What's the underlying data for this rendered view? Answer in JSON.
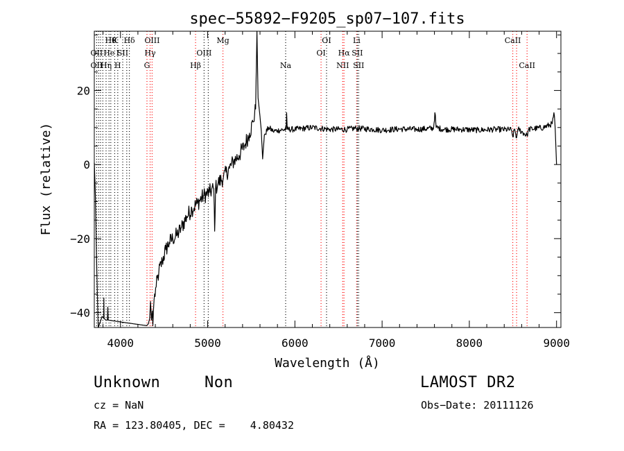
{
  "chart_data": {
    "type": "line",
    "title": "spec−55892−F9205_sp07−107.fits",
    "xlabel": "Wavelength (Å)",
    "ylabel": "Flux (relative)",
    "xlim": [
      3700,
      9050
    ],
    "ylim": [
      -44,
      36
    ],
    "xticks": [
      {
        "value": 4000,
        "label": "4000"
      },
      {
        "value": 5000,
        "label": "5000"
      },
      {
        "value": 6000,
        "label": "6000"
      },
      {
        "value": 7000,
        "label": "7000"
      },
      {
        "value": 8000,
        "label": "8000"
      },
      {
        "value": 9000,
        "label": "9000"
      }
    ],
    "yticks": [
      {
        "value": 20,
        "label": "20"
      },
      {
        "value": 0,
        "label": "0"
      },
      {
        "value": -20,
        "label": "−20"
      },
      {
        "value": -40,
        "label": "−40"
      }
    ],
    "lines": [
      {
        "wavelength": 3727,
        "color": "#000000",
        "labels": [
          {
            "row": 1,
            "text": "OII"
          },
          {
            "row": 2,
            "text": "OII"
          }
        ]
      },
      {
        "wavelength": 3750,
        "color": "#000000",
        "labels": []
      },
      {
        "wavelength": 3771,
        "color": "#000000",
        "labels": []
      },
      {
        "wavelength": 3798,
        "color": "#000000",
        "labels": []
      },
      {
        "wavelength": 3835,
        "color": "#000000",
        "labels": [
          {
            "row": 2,
            "text": "Hη"
          }
        ]
      },
      {
        "wavelength": 3869,
        "color": "#000000",
        "labels": [
          {
            "row": 1,
            "text": "He"
          }
        ]
      },
      {
        "wavelength": 3889,
        "color": "#000000",
        "labels": [
          {
            "row": 0,
            "text": "Hθ"
          }
        ]
      },
      {
        "wavelength": 3934,
        "color": "#000000",
        "labels": [
          {
            "row": 0,
            "text": "K"
          }
        ]
      },
      {
        "wavelength": 3969,
        "color": "#000000",
        "labels": [
          {
            "row": 1,
            "text": "I"
          },
          {
            "row": 2,
            "text": "H"
          }
        ]
      },
      {
        "wavelength": 4026,
        "color": "#000000",
        "labels": [
          {
            "row": 1,
            "text": "SII"
          }
        ]
      },
      {
        "wavelength": 4072,
        "color": "#000000",
        "labels": []
      },
      {
        "wavelength": 4102,
        "color": "#000000",
        "labels": [
          {
            "row": 0,
            "text": "Hδ"
          }
        ]
      },
      {
        "wavelength": 4304,
        "color": "#ff0000",
        "labels": [
          {
            "row": 2,
            "text": "G"
          }
        ]
      },
      {
        "wavelength": 4340,
        "color": "#ff0000",
        "labels": [
          {
            "row": 1,
            "text": "Hγ"
          }
        ]
      },
      {
        "wavelength": 4363,
        "color": "#ff0000",
        "labels": [
          {
            "row": 0,
            "text": "OIII"
          }
        ]
      },
      {
        "wavelength": 4861,
        "color": "#ff0000",
        "labels": [
          {
            "row": 2,
            "text": "Hβ"
          }
        ]
      },
      {
        "wavelength": 4959,
        "color": "#000000",
        "labels": [
          {
            "row": 1,
            "text": "OIII"
          }
        ]
      },
      {
        "wavelength": 5007,
        "color": "#000000",
        "labels": []
      },
      {
        "wavelength": 5175,
        "color": "#ff0000",
        "labels": [
          {
            "row": 0,
            "text": "Mg"
          }
        ]
      },
      {
        "wavelength": 5894,
        "color": "#000000",
        "labels": [
          {
            "row": 2,
            "text": "Na"
          }
        ]
      },
      {
        "wavelength": 6300,
        "color": "#ff0000",
        "labels": [
          {
            "row": 1,
            "text": "OI"
          }
        ]
      },
      {
        "wavelength": 6363,
        "color": "#000000",
        "labels": [
          {
            "row": 0,
            "text": "OI"
          }
        ]
      },
      {
        "wavelength": 6548,
        "color": "#ff0000",
        "labels": [
          {
            "row": 2,
            "text": "NII"
          }
        ]
      },
      {
        "wavelength": 6563,
        "color": "#ff0000",
        "labels": [
          {
            "row": 1,
            "text": "Hα"
          }
        ]
      },
      {
        "wavelength": 6708,
        "color": "#ff0000",
        "labels": [
          {
            "row": 0,
            "text": "Li"
          }
        ]
      },
      {
        "wavelength": 6716,
        "color": "#000000",
        "labels": [
          {
            "row": 1,
            "text": "SII"
          }
        ]
      },
      {
        "wavelength": 6731,
        "color": "#000000",
        "labels": [
          {
            "row": 2,
            "text": "SII"
          }
        ]
      },
      {
        "wavelength": 8498,
        "color": "#ff0000",
        "labels": [
          {
            "row": 0,
            "text": "CaII"
          }
        ]
      },
      {
        "wavelength": 8542,
        "color": "#ff0000",
        "labels": []
      },
      {
        "wavelength": 8662,
        "color": "#ff0000",
        "labels": [
          {
            "row": 2,
            "text": "CaII"
          }
        ]
      }
    ],
    "series": [
      {
        "anchors": [
          [
            3700,
            0.5
          ],
          [
            3712,
            -8
          ],
          [
            3730,
            -30
          ],
          [
            3745,
            -44
          ],
          [
            3790,
            -41
          ],
          [
            3808,
            -41.5
          ],
          [
            3810,
            -36
          ],
          [
            3812,
            -41.5
          ],
          [
            3830,
            -42
          ],
          [
            3850,
            -42
          ],
          [
            3855,
            -38.5
          ],
          [
            3860,
            -42
          ],
          [
            4000,
            -42.5
          ],
          [
            4150,
            -43
          ],
          [
            4300,
            -43.5
          ],
          [
            4320,
            -43
          ],
          [
            4335,
            -41.5
          ],
          [
            4345,
            -37
          ],
          [
            4355,
            -42
          ],
          [
            4365,
            -39.5
          ],
          [
            4372,
            -43.5
          ],
          [
            4378,
            -39.5
          ],
          [
            4385,
            -36.5
          ],
          [
            4410,
            -33
          ],
          [
            4440,
            -29
          ],
          [
            4480,
            -26
          ],
          [
            4520,
            -23
          ],
          [
            4560,
            -21
          ],
          [
            4600,
            -20
          ],
          [
            4650,
            -19
          ],
          [
            4700,
            -17
          ],
          [
            4760,
            -14
          ],
          [
            4820,
            -12
          ],
          [
            4880,
            -10.5
          ],
          [
            4950,
            -8.5
          ],
          [
            5020,
            -7.5
          ],
          [
            5070,
            -6.5
          ],
          [
            5080,
            -18
          ],
          [
            5090,
            -6.5
          ],
          [
            5120,
            -5
          ],
          [
            5180,
            -3.5
          ],
          [
            5250,
            -1
          ],
          [
            5300,
            1
          ],
          [
            5360,
            2.5
          ],
          [
            5420,
            5
          ],
          [
            5480,
            8.5
          ],
          [
            5520,
            11.5
          ],
          [
            5550,
            15
          ],
          [
            5565,
            36
          ],
          [
            5578,
            18
          ],
          [
            5600,
            13
          ],
          [
            5615,
            9
          ],
          [
            5630,
            1.5
          ],
          [
            5650,
            8
          ],
          [
            5700,
            10
          ],
          [
            5750,
            9
          ],
          [
            5800,
            9.2
          ],
          [
            5900,
            9.5
          ],
          [
            5905,
            14
          ],
          [
            5912,
            9.5
          ],
          [
            6000,
            9.5
          ],
          [
            6200,
            10
          ],
          [
            6400,
            9.5
          ],
          [
            6600,
            9.5
          ],
          [
            6700,
            9.8
          ],
          [
            6900,
            9.5
          ],
          [
            7000,
            9.3
          ],
          [
            7200,
            9.6
          ],
          [
            7400,
            9.5
          ],
          [
            7590,
            9.8
          ],
          [
            7605,
            14
          ],
          [
            7620,
            10
          ],
          [
            7700,
            9.5
          ],
          [
            7900,
            9.5
          ],
          [
            8100,
            9.3
          ],
          [
            8300,
            9.5
          ],
          [
            8480,
            9.4
          ],
          [
            8498,
            7.5
          ],
          [
            8520,
            9.6
          ],
          [
            8542,
            7.2
          ],
          [
            8560,
            9.6
          ],
          [
            8662,
            7.8
          ],
          [
            8680,
            9.5
          ],
          [
            8850,
            10
          ],
          [
            8950,
            11
          ],
          [
            8970,
            14
          ],
          [
            8985,
            9.5
          ],
          [
            8992,
            5
          ],
          [
            9000,
            0
          ]
        ],
        "noise": 0.8
      }
    ]
  },
  "footer": {
    "object_class": "Unknown",
    "subclass": "Non",
    "survey": "LAMOST DR2",
    "cz_label": "cz = NaN",
    "obs_date": "Obs−Date: 20111126",
    "radec": "RA = 123.80405, DEC =    4.80432"
  }
}
